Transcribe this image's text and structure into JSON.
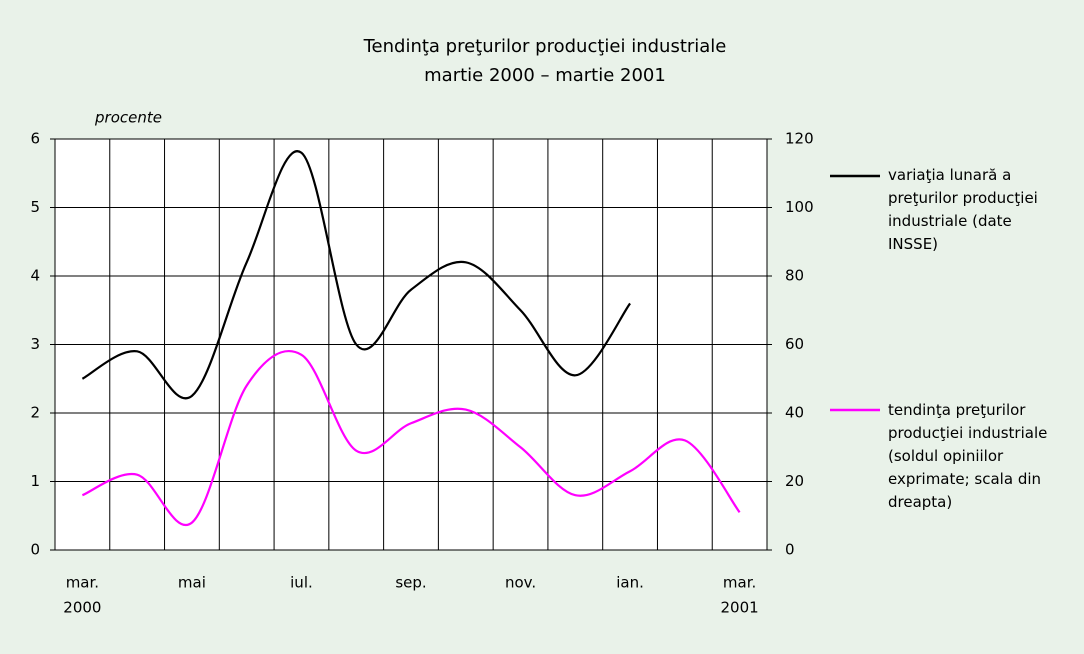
{
  "chart_data": {
    "type": "line",
    "title": "Tendinţa preţurilor producţiei industriale",
    "subtitle": "martie 2000 – martie 2001",
    "ylabel": "procente",
    "categories": [
      "mar.",
      null,
      "mai",
      null,
      "iul.",
      null,
      "sep.",
      null,
      "nov.",
      null,
      "ian.",
      null,
      "mar."
    ],
    "category_years": [
      "2000",
      null,
      null,
      null,
      null,
      null,
      null,
      null,
      null,
      null,
      null,
      null,
      "2001"
    ],
    "series": [
      {
        "name": "variaţia lunară a preţurilor producţiei industriale (date INSSE)",
        "color": "#000000",
        "axis": "y",
        "values": [
          2.5,
          2.9,
          2.25,
          4.2,
          5.8,
          3.0,
          3.8,
          4.2,
          3.5,
          2.55,
          3.6,
          null,
          null
        ]
      },
      {
        "name": "tendinţa preţurilor producţiei industriale (soldul opiniilor exprimate; scala din dreapta)",
        "color": "#ff00ff",
        "axis": "y2",
        "values": [
          16,
          22,
          8,
          48,
          57,
          29,
          37,
          41,
          30,
          16,
          23,
          32,
          11
        ]
      }
    ],
    "ylim": [
      0,
      6
    ],
    "yticks": [
      0,
      1,
      2,
      3,
      4,
      5,
      6
    ],
    "y2lim": [
      0,
      120
    ],
    "y2ticks": [
      0,
      20,
      40,
      60,
      80,
      100,
      120
    ],
    "grid": true,
    "legend": "right"
  }
}
